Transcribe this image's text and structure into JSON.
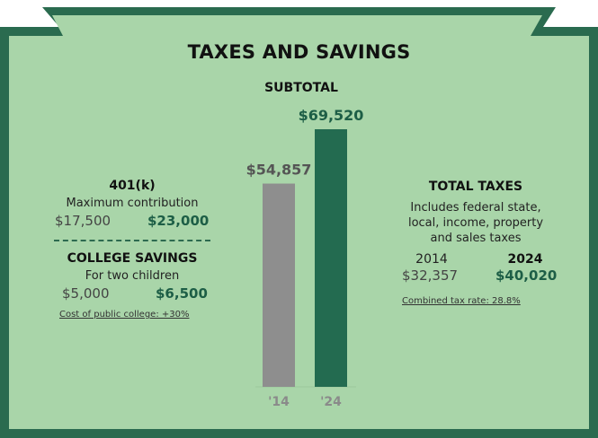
{
  "title": "TAXES AND SAVINGS",
  "colors": {
    "frame": "#2a6b4f",
    "panel": "#a9d5a9",
    "bar_2014": "#8e8e8e",
    "bar_2024": "#236b50",
    "accent_green": "#1d5e46"
  },
  "chart_data": {
    "type": "bar",
    "title": "SUBTOTAL",
    "categories": [
      "'14",
      "'24"
    ],
    "values": [
      54857,
      69520
    ],
    "value_labels": [
      "$54,857",
      "$69,520"
    ],
    "ylim": [
      0,
      69520
    ],
    "grid": false
  },
  "left": {
    "k401": {
      "heading": "401(k)",
      "subtitle": "Maximum contribution",
      "old": "$17,500",
      "new": "$23,000"
    },
    "college": {
      "heading": "COLLEGE SAVINGS",
      "subtitle": "For two children",
      "old": "$5,000",
      "new": "$6,500",
      "note": "Cost of public college: +30%"
    }
  },
  "right": {
    "heading": "TOTAL TAXES",
    "desc_lines": [
      "Includes federal state,",
      "local, income, property",
      "and sales taxes"
    ],
    "year_old": "2014",
    "year_new": "2024",
    "old": "$32,357",
    "new": "$40,020",
    "note": "Combined tax rate: 28.8%"
  }
}
